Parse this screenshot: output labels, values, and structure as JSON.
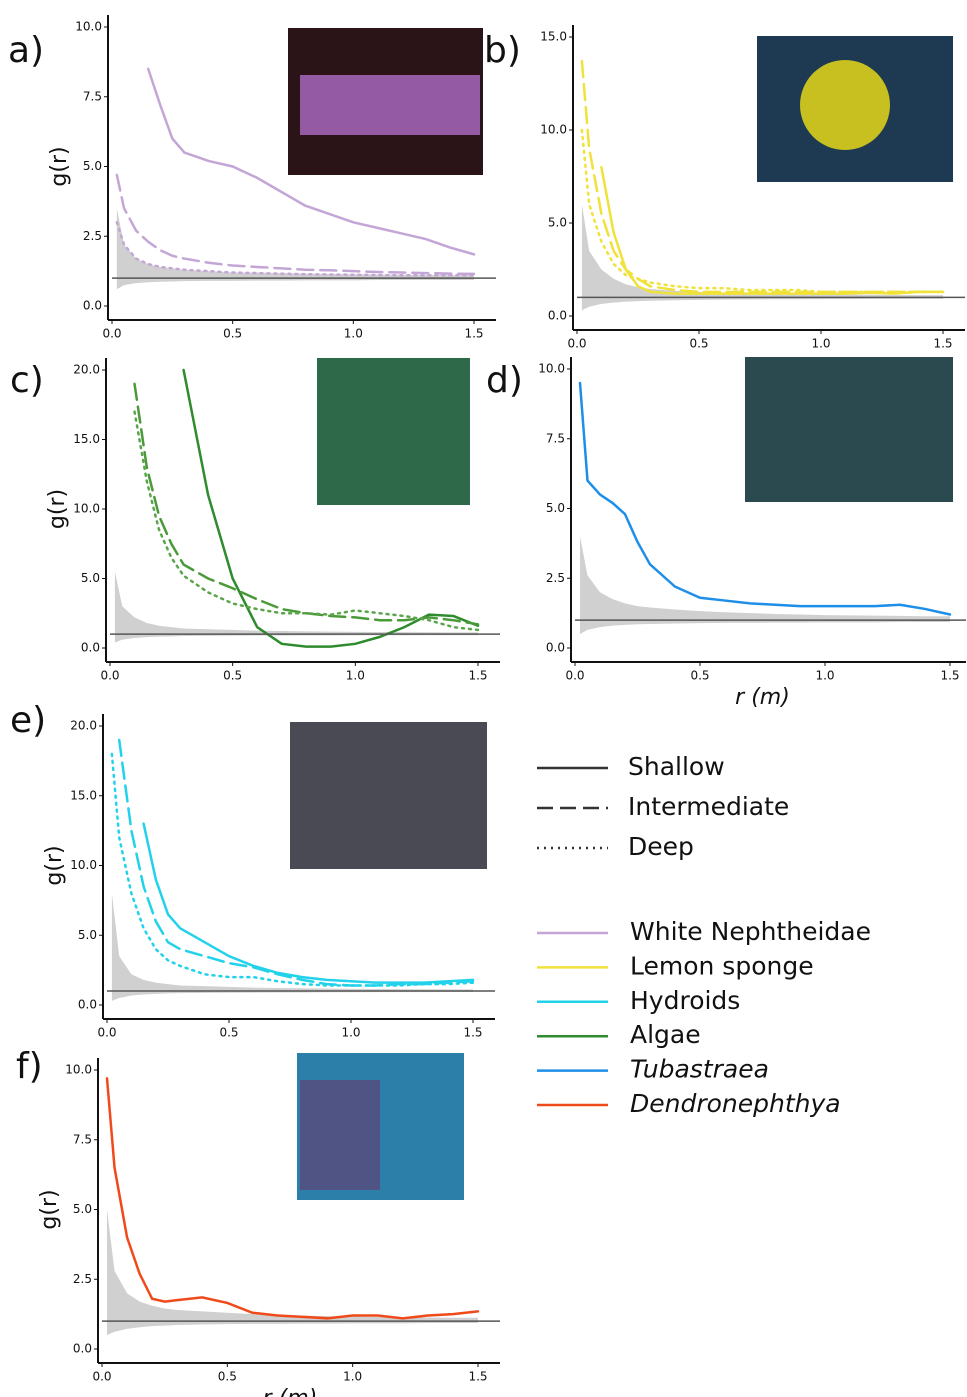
{
  "chart_data": [
    {
      "type": "line",
      "panel": "a)",
      "ylabel": "g(r)",
      "reference": 1,
      "x": [
        0.02,
        0.05,
        0.1,
        0.15,
        0.2,
        0.25,
        0.3,
        0.4,
        0.5,
        0.6,
        0.7,
        0.8,
        0.9,
        1.0,
        1.1,
        1.2,
        1.3,
        1.4,
        1.5
      ],
      "xlim": [
        0,
        1.5
      ],
      "xticks": [
        {
          "value": 0,
          "label": "0.0"
        },
        0.5,
        {
          "value": 1,
          "label": "1.0"
        },
        1.5
      ],
      "ylim": [
        0,
        10
      ],
      "yticks": [
        {
          "value": 0,
          "label": "0.0"
        },
        2.5,
        {
          "value": 5,
          "label": "5.0"
        },
        7.5,
        {
          "value": 10,
          "label": "10.0"
        }
      ],
      "envelope": {
        "upper": [
          3.5,
          2.2,
          1.7,
          1.5,
          1.4,
          1.35,
          1.3,
          1.25,
          1.2,
          1.2,
          1.18,
          1.16,
          1.15,
          1.14,
          1.13,
          1.12,
          1.11,
          1.1,
          1.1
        ],
        "lower": [
          0.6,
          0.75,
          0.82,
          0.85,
          0.87,
          0.88,
          0.89,
          0.9,
          0.9,
          0.91,
          0.91,
          0.92,
          0.92,
          0.92,
          0.93,
          0.93,
          0.93,
          0.93,
          0.93
        ]
      },
      "series": [
        {
          "name": "Shallow",
          "color": "#c4a6d6",
          "values": [
            null,
            null,
            null,
            8.5,
            7.2,
            6.0,
            5.5,
            5.2,
            5.0,
            4.6,
            4.1,
            3.6,
            3.3,
            3.0,
            2.8,
            2.6,
            2.4,
            2.1,
            1.85
          ]
        },
        {
          "name": "Intermediate",
          "color": "#c4a6d6",
          "values": [
            4.7,
            3.5,
            2.7,
            2.3,
            2.0,
            1.8,
            1.7,
            1.55,
            1.45,
            1.4,
            1.35,
            1.3,
            1.28,
            1.25,
            1.22,
            1.2,
            1.18,
            1.16,
            1.15
          ]
        },
        {
          "name": "Deep",
          "color": "#c4a6d6",
          "values": [
            3.0,
            2.2,
            1.7,
            1.5,
            1.4,
            1.35,
            1.3,
            1.25,
            1.2,
            1.18,
            1.16,
            1.14,
            1.13,
            1.12,
            1.11,
            1.1,
            1.1,
            1.1,
            1.1
          ]
        }
      ]
    },
    {
      "type": "line",
      "panel": "b)",
      "reference": 1,
      "x": [
        0.02,
        0.05,
        0.1,
        0.15,
        0.2,
        0.25,
        0.3,
        0.4,
        0.5,
        0.6,
        0.7,
        0.8,
        0.9,
        1.0,
        1.1,
        1.2,
        1.3,
        1.4,
        1.5
      ],
      "xlim": [
        0,
        1.5
      ],
      "xticks": [
        {
          "value": 0,
          "label": "0.0"
        },
        0.5,
        {
          "value": 1,
          "label": "1.0"
        },
        1.5
      ],
      "ylim": [
        0,
        15
      ],
      "yticks": [
        {
          "value": 0,
          "label": "0.0"
        },
        {
          "value": 5,
          "label": "5.0"
        },
        {
          "value": 10,
          "label": "10.0"
        },
        {
          "value": 15,
          "label": "15.0"
        }
      ],
      "envelope": {
        "upper": [
          6,
          3.5,
          2.5,
          2.0,
          1.7,
          1.55,
          1.45,
          1.35,
          1.3,
          1.25,
          1.22,
          1.2,
          1.18,
          1.16,
          1.15,
          1.14,
          1.13,
          1.12,
          1.12
        ],
        "lower": [
          0.3,
          0.5,
          0.65,
          0.72,
          0.77,
          0.8,
          0.82,
          0.85,
          0.87,
          0.88,
          0.89,
          0.9,
          0.9,
          0.91,
          0.91,
          0.92,
          0.92,
          0.92,
          0.92
        ]
      },
      "series": [
        {
          "name": "Shallow",
          "color": "#f0e23a",
          "values": [
            null,
            null,
            8,
            4.5,
            2.5,
            1.6,
            1.3,
            1.2,
            1.2,
            1.2,
            1.2,
            1.2,
            1.2,
            1.2,
            1.2,
            1.25,
            1.2,
            1.3,
            1.3
          ]
        },
        {
          "name": "Intermediate",
          "color": "#f0e23a",
          "values": [
            13.7,
            9,
            5.5,
            3.5,
            2.5,
            2.0,
            1.6,
            1.4,
            1.3,
            1.3,
            1.3,
            1.3,
            1.3,
            1.3,
            1.3,
            1.3,
            1.3,
            1.3,
            1.3
          ]
        },
        {
          "name": "Deep",
          "color": "#f0e23a",
          "values": [
            10,
            6,
            4,
            2.8,
            2.2,
            2.0,
            1.8,
            1.6,
            1.5,
            1.5,
            1.4,
            1.4,
            1.4,
            1.3,
            1.3,
            1.3,
            1.3,
            1.3,
            1.3
          ]
        }
      ]
    },
    {
      "type": "line",
      "panel": "c)",
      "ylabel": "g(r)",
      "reference": 1,
      "x": [
        0.02,
        0.05,
        0.1,
        0.15,
        0.2,
        0.25,
        0.3,
        0.4,
        0.5,
        0.6,
        0.7,
        0.8,
        0.9,
        1.0,
        1.1,
        1.2,
        1.3,
        1.4,
        1.5
      ],
      "xlim": [
        0,
        1.5
      ],
      "xticks": [
        {
          "value": 0,
          "label": "0.0"
        },
        0.5,
        {
          "value": 1,
          "label": "1.0"
        },
        1.5
      ],
      "ylim": [
        0,
        20
      ],
      "yticks": [
        {
          "value": 0,
          "label": "0.0"
        },
        {
          "value": 5,
          "label": "5.0"
        },
        {
          "value": 10,
          "label": "10.0"
        },
        {
          "value": 15,
          "label": "15.0"
        },
        {
          "value": 20,
          "label": "20.0"
        }
      ],
      "envelope": {
        "upper": [
          5.5,
          3,
          2.2,
          1.8,
          1.6,
          1.5,
          1.4,
          1.35,
          1.3,
          1.25,
          1.22,
          1.2,
          1.18,
          1.16,
          1.15,
          1.14,
          1.13,
          1.12,
          1.12
        ],
        "lower": [
          0.4,
          0.6,
          0.72,
          0.78,
          0.82,
          0.84,
          0.86,
          0.88,
          0.89,
          0.9,
          0.9,
          0.91,
          0.91,
          0.92,
          0.92,
          0.92,
          0.93,
          0.93,
          0.93
        ]
      },
      "series": [
        {
          "name": "Shallow",
          "color": "#2e8b2e",
          "values": [
            null,
            null,
            null,
            null,
            null,
            null,
            20,
            11,
            5,
            1.5,
            0.3,
            0.1,
            0.1,
            0.3,
            0.8,
            1.5,
            2.4,
            2.3,
            1.6
          ]
        },
        {
          "name": "Intermediate",
          "color": "#4a9a3a",
          "values": [
            null,
            null,
            19,
            13,
            9.5,
            7.5,
            6,
            5,
            4.3,
            3.5,
            2.8,
            2.5,
            2.3,
            2.2,
            2.0,
            2.0,
            2.2,
            2.0,
            1.7
          ]
        },
        {
          "name": "Deep",
          "color": "#5aa54a",
          "values": [
            null,
            null,
            17,
            12,
            8.5,
            6.5,
            5.2,
            4,
            3.2,
            2.8,
            2.5,
            2.5,
            2.4,
            2.7,
            2.5,
            2.3,
            2.0,
            1.5,
            1.3
          ]
        }
      ]
    },
    {
      "type": "line",
      "panel": "d)",
      "xlabel": "r (m)",
      "reference": 1,
      "x": [
        0.02,
        0.05,
        0.1,
        0.15,
        0.2,
        0.25,
        0.3,
        0.4,
        0.5,
        0.6,
        0.7,
        0.8,
        0.9,
        1.0,
        1.1,
        1.2,
        1.3,
        1.4,
        1.5
      ],
      "xlim": [
        0,
        1.5
      ],
      "xticks": [
        {
          "value": 0,
          "label": "0.0"
        },
        0.5,
        {
          "value": 1,
          "label": "1.0"
        },
        1.5
      ],
      "ylim": [
        0,
        10
      ],
      "yticks": [
        {
          "value": 0,
          "label": "0.0"
        },
        2.5,
        {
          "value": 5,
          "label": "5.0"
        },
        7.5,
        {
          "value": 10,
          "label": "10.0"
        }
      ],
      "envelope": {
        "upper": [
          4,
          2.6,
          2.0,
          1.75,
          1.6,
          1.5,
          1.45,
          1.38,
          1.32,
          1.28,
          1.25,
          1.22,
          1.2,
          1.18,
          1.17,
          1.16,
          1.15,
          1.14,
          1.14
        ],
        "lower": [
          0.5,
          0.65,
          0.75,
          0.8,
          0.83,
          0.85,
          0.86,
          0.88,
          0.89,
          0.9,
          0.9,
          0.91,
          0.91,
          0.92,
          0.92,
          0.92,
          0.93,
          0.93,
          0.93
        ]
      },
      "series": [
        {
          "name": "Shallow",
          "color": "#1e8fe8",
          "values": [
            9.5,
            6,
            5.5,
            5.2,
            4.8,
            3.8,
            3.0,
            2.2,
            1.8,
            1.7,
            1.6,
            1.55,
            1.5,
            1.5,
            1.5,
            1.5,
            1.55,
            1.4,
            1.2
          ]
        }
      ]
    },
    {
      "type": "line",
      "panel": "e)",
      "ylabel": "g(r)",
      "reference": 1,
      "x": [
        0.02,
        0.05,
        0.1,
        0.15,
        0.2,
        0.25,
        0.3,
        0.4,
        0.5,
        0.6,
        0.7,
        0.8,
        0.9,
        1.0,
        1.1,
        1.2,
        1.3,
        1.4,
        1.5
      ],
      "xlim": [
        0,
        1.5
      ],
      "xticks": [
        {
          "value": 0,
          "label": "0.0"
        },
        0.5,
        {
          "value": 1,
          "label": "1.0"
        },
        1.5
      ],
      "ylim": [
        0,
        20
      ],
      "yticks": [
        {
          "value": 0,
          "label": "0.0"
        },
        {
          "value": 5,
          "label": "5.0"
        },
        {
          "value": 10,
          "label": "10.0"
        },
        {
          "value": 15,
          "label": "15.0"
        },
        {
          "value": 20,
          "label": "20.0"
        }
      ],
      "envelope": {
        "upper": [
          8,
          3.5,
          2.2,
          1.8,
          1.6,
          1.5,
          1.4,
          1.35,
          1.3,
          1.25,
          1.22,
          1.2,
          1.18,
          1.16,
          1.15,
          1.14,
          1.13,
          1.12,
          1.12
        ],
        "lower": [
          0.3,
          0.5,
          0.68,
          0.75,
          0.8,
          0.83,
          0.85,
          0.87,
          0.88,
          0.89,
          0.9,
          0.9,
          0.91,
          0.91,
          0.92,
          0.92,
          0.92,
          0.93,
          0.93
        ]
      },
      "series": [
        {
          "name": "Shallow",
          "color": "#22d2ea",
          "values": [
            null,
            null,
            null,
            13,
            9,
            6.5,
            5.5,
            4.5,
            3.5,
            2.8,
            2.3,
            2.0,
            1.8,
            1.7,
            1.6,
            1.6,
            1.6,
            1.7,
            1.8
          ]
        },
        {
          "name": "Intermediate",
          "color": "#22d2ea",
          "values": [
            null,
            19,
            12.5,
            8.5,
            6,
            4.5,
            4,
            3.5,
            3,
            2.7,
            2.2,
            1.8,
            1.5,
            1.4,
            1.4,
            1.5,
            1.5,
            1.6,
            1.7
          ]
        },
        {
          "name": "Deep",
          "color": "#22d2ea",
          "values": [
            18,
            12,
            8,
            5.5,
            4,
            3.2,
            2.8,
            2.2,
            2,
            2,
            1.7,
            1.5,
            1.4,
            1.4,
            1.4,
            1.4,
            1.5,
            1.5,
            1.6
          ]
        }
      ]
    },
    {
      "type": "line",
      "panel": "f)",
      "ylabel": "g(r)",
      "xlabel": "r (m)",
      "reference": 1,
      "x": [
        0.02,
        0.05,
        0.1,
        0.15,
        0.2,
        0.25,
        0.3,
        0.4,
        0.5,
        0.6,
        0.7,
        0.8,
        0.9,
        1.0,
        1.1,
        1.2,
        1.3,
        1.4,
        1.5
      ],
      "xlim": [
        0,
        1.5
      ],
      "xticks": [
        {
          "value": 0,
          "label": "0.0"
        },
        0.5,
        {
          "value": 1,
          "label": "1.0"
        },
        1.5
      ],
      "ylim": [
        0,
        10
      ],
      "yticks": [
        {
          "value": 0,
          "label": "0.0"
        },
        2.5,
        {
          "value": 5,
          "label": "5.0"
        },
        7.5,
        {
          "value": 10,
          "label": "10.0"
        }
      ],
      "envelope": {
        "upper": [
          5,
          2.8,
          2.0,
          1.7,
          1.55,
          1.45,
          1.4,
          1.35,
          1.3,
          1.25,
          1.22,
          1.2,
          1.18,
          1.16,
          1.15,
          1.14,
          1.13,
          1.12,
          1.12
        ],
        "lower": [
          0.5,
          0.62,
          0.72,
          0.78,
          0.82,
          0.84,
          0.86,
          0.88,
          0.89,
          0.9,
          0.9,
          0.91,
          0.91,
          0.92,
          0.92,
          0.92,
          0.93,
          0.93,
          0.93
        ]
      },
      "series": [
        {
          "name": "Shallow",
          "color": "#f04a1a",
          "values": [
            9.7,
            6.5,
            4,
            2.7,
            1.8,
            1.7,
            1.75,
            1.85,
            1.65,
            1.3,
            1.2,
            1.15,
            1.1,
            1.2,
            1.2,
            1.1,
            1.2,
            1.25,
            1.35
          ]
        }
      ]
    }
  ],
  "legend": {
    "line_styles": [
      {
        "name": "Shallow",
        "dash": "solid"
      },
      {
        "name": "Intermediate",
        "dash": "dashed"
      },
      {
        "name": "Deep",
        "dash": "dotted"
      }
    ],
    "species": [
      {
        "name": "White Nephtheidae",
        "color": "#c4a6d6",
        "italic": false
      },
      {
        "name": "Lemon sponge",
        "color": "#f0e23a",
        "italic": false
      },
      {
        "name": "Hydroids",
        "color": "#22d2ea",
        "italic": false
      },
      {
        "name": "Algae",
        "color": "#2e8b2e",
        "italic": false
      },
      {
        "name": "Tubastraea",
        "color": "#1e8fe8",
        "italic": true
      },
      {
        "name": "Dendronephthya",
        "color": "#f04a1a",
        "italic": true
      }
    ]
  }
}
